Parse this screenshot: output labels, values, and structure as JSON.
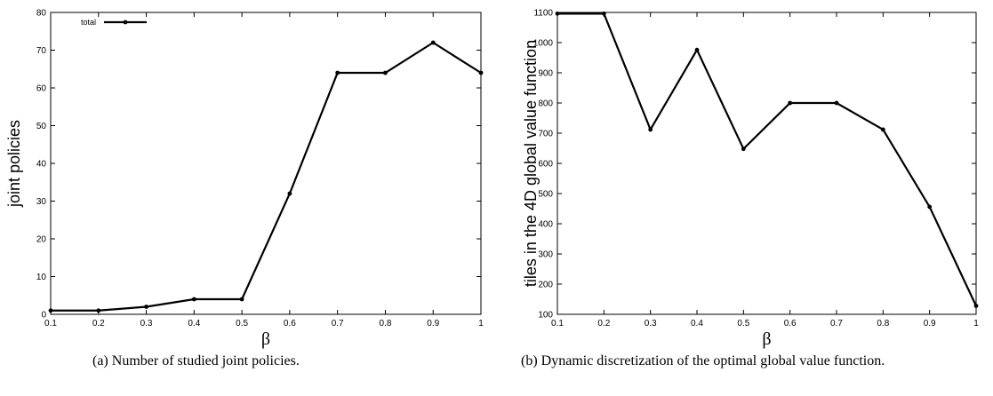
{
  "captions": {
    "a": "(a)  Number of studied joint policies.",
    "b": "(b)  Dynamic discretization of the optimal global value function."
  },
  "chart_data": [
    {
      "type": "line",
      "title": "",
      "xlabel": "β",
      "ylabel": "joint policies",
      "xlim": [
        0.1,
        1
      ],
      "ylim": [
        0,
        80
      ],
      "xticks": [
        "0.1",
        "0.2",
        "0.3",
        "0.4",
        "0.5",
        "0.6",
        "0.7",
        "0.8",
        "0.9",
        "1"
      ],
      "yticks": [
        "0",
        "10",
        "20",
        "30",
        "40",
        "50",
        "60",
        "70",
        "80"
      ],
      "legend_position": "top-left",
      "grid": false,
      "x": [
        0.1,
        0.2,
        0.3,
        0.4,
        0.5,
        0.6,
        0.7,
        0.8,
        0.9,
        1.0
      ],
      "series": [
        {
          "name": "total",
          "values": [
            1,
            1,
            2,
            4,
            4,
            32,
            64,
            64,
            72,
            64
          ],
          "color": "#000000"
        }
      ]
    },
    {
      "type": "line",
      "title": "",
      "xlabel": "β",
      "ylabel": "tiles in the 4D global value function",
      "xlim": [
        0.1,
        1
      ],
      "ylim": [
        100,
        1100
      ],
      "xticks": [
        "0.1",
        "0.2",
        "0.3",
        "0.4",
        "0.5",
        "0.6",
        "0.7",
        "0.8",
        "0.9",
        "1"
      ],
      "yticks": [
        "100",
        "200",
        "300",
        "400",
        "500",
        "600",
        "700",
        "800",
        "900",
        "1000",
        "1100"
      ],
      "grid": false,
      "x": [
        0.1,
        0.2,
        0.3,
        0.4,
        0.5,
        0.6,
        0.7,
        0.8,
        0.9,
        1.0
      ],
      "series": [
        {
          "values": [
            1096,
            1096,
            712,
            976,
            648,
            800,
            800,
            712,
            456,
            128
          ],
          "color": "#000000"
        }
      ]
    }
  ]
}
